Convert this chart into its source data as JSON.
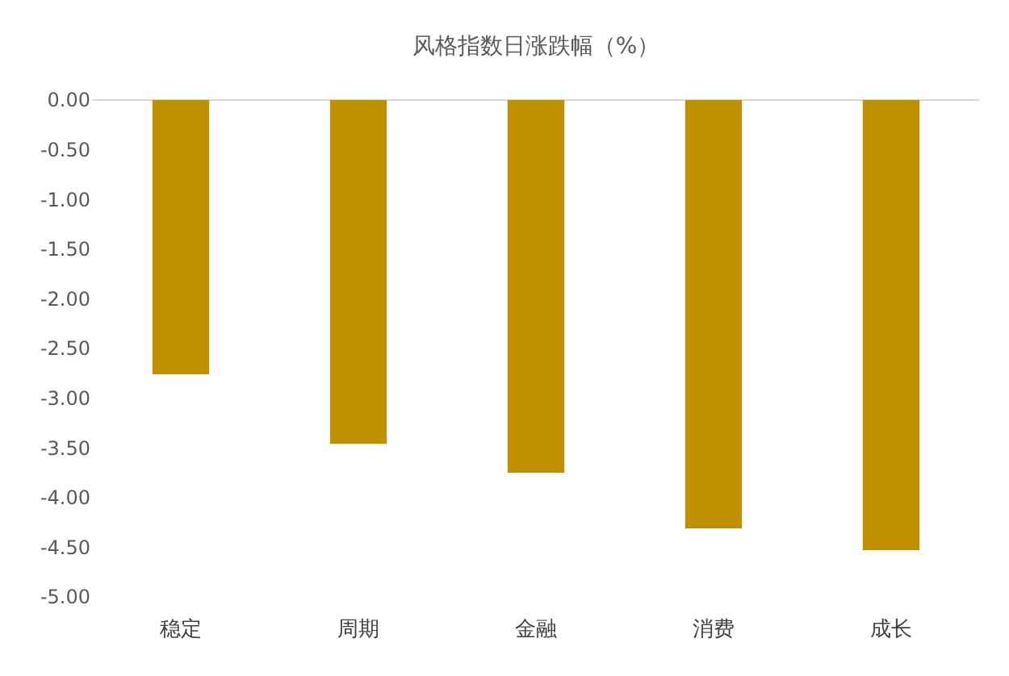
{
  "chart_data": {
    "type": "bar",
    "title": "风格指数日涨跌幅（%）",
    "categories": [
      "稳定",
      "周期",
      "金融",
      "消费",
      "成长"
    ],
    "values": [
      -2.76,
      -3.46,
      -3.75,
      -4.31,
      -4.53
    ],
    "color": "#bf9000",
    "ylim": [
      -5,
      0
    ],
    "yticks": [
      {
        "value": 0,
        "label": "0.00"
      },
      {
        "value": -0.5,
        "label": "-0.50"
      },
      {
        "value": -1,
        "label": "-1.00"
      },
      {
        "value": -1.5,
        "label": "-1.50"
      },
      {
        "value": -2,
        "label": "-2.00"
      },
      {
        "value": -2.5,
        "label": "-2.50"
      },
      {
        "value": -3,
        "label": "-3.00"
      },
      {
        "value": -3.5,
        "label": "-3.50"
      },
      {
        "value": -4,
        "label": "-4.00"
      },
      {
        "value": -4.5,
        "label": "-4.50"
      },
      {
        "value": -5,
        "label": "-5.00"
      }
    ],
    "grid": false
  }
}
